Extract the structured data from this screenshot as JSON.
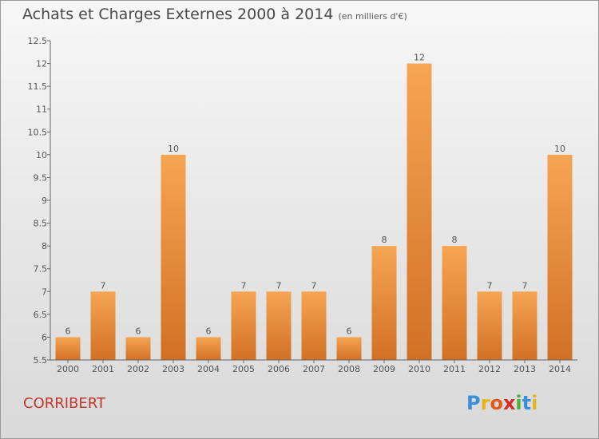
{
  "title": "Achats et Charges Externes 2000 à 2014",
  "unit": "(en milliers d'€)",
  "place_name": "CORRIBERT",
  "brand": {
    "text": "Proxiti",
    "letters": [
      {
        "char": "P",
        "color": "#3a8fd8"
      },
      {
        "char": "r",
        "color": "#e8b21a"
      },
      {
        "char": "o",
        "color": "#e35a1c"
      },
      {
        "char": "x",
        "color": "#d42a2a"
      },
      {
        "char": "i",
        "color": "#4bb23b"
      },
      {
        "char": "t",
        "color": "#3a8fd8"
      },
      {
        "char": "i",
        "color": "#e8b21a"
      }
    ]
  },
  "colors": {
    "bar_top": "#f6a553",
    "bar_bottom": "#d27024",
    "place_text": "#c0392b",
    "axis": "#666666"
  },
  "chart_data": {
    "type": "bar",
    "title": "Achats et Charges Externes 2000 à 2014",
    "unit": "(en milliers d'€)",
    "categories": [
      "2000",
      "2001",
      "2002",
      "2003",
      "2004",
      "2005",
      "2006",
      "2007",
      "2008",
      "2009",
      "2010",
      "2011",
      "2012",
      "2013",
      "2014"
    ],
    "values": [
      6,
      7,
      6,
      10,
      6,
      7,
      7,
      7,
      6,
      8,
      12,
      8,
      7,
      7,
      10
    ],
    "ylim": [
      5.5,
      12.5
    ],
    "yticks": [
      5.5,
      6,
      6.5,
      7,
      7.5,
      8,
      8.5,
      9,
      9.5,
      10,
      10.5,
      11,
      11.5,
      12,
      12.5
    ],
    "ytick_labels": [
      "5.5",
      "6",
      "6.5",
      "7",
      "7.5",
      "8",
      "8.5",
      "9",
      "9.5",
      "10",
      "10.5",
      "11",
      "11.5",
      "12",
      "12.5"
    ],
    "xlabel": "",
    "ylabel": "",
    "grid": false,
    "legend": "none"
  }
}
